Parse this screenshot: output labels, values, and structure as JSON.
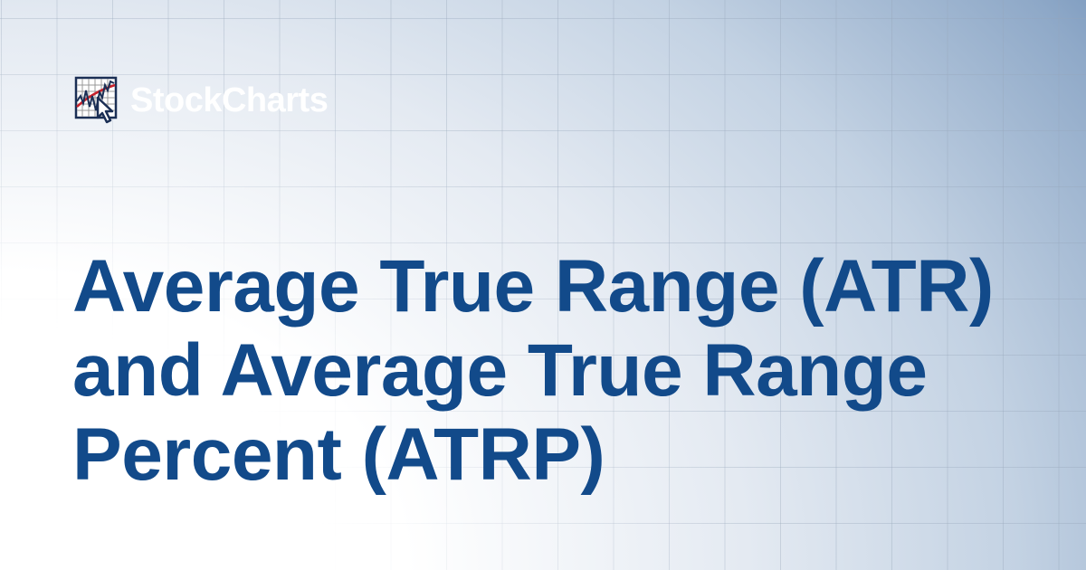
{
  "brand": {
    "name": "StockCharts",
    "logo_icon": "chart-with-cursor-icon",
    "accent": "#124a8a",
    "logo_line_color": "#c8202a"
  },
  "title": "Average True Range (ATR) and Average True Range Percent (ATRP)"
}
